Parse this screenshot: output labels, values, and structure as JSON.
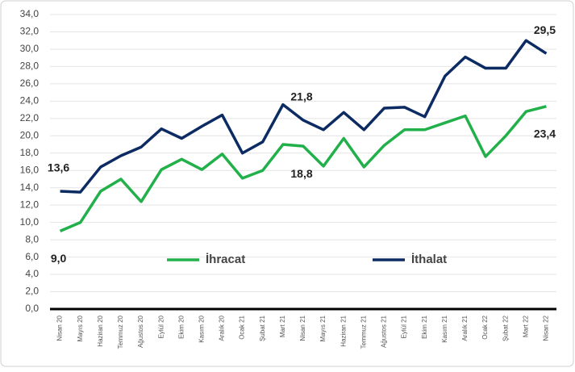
{
  "chart_data": {
    "type": "line",
    "categories": [
      "Nisan 20",
      "Mayıs 20",
      "Haziran 20",
      "Temmuz 20",
      "Ağustos 20",
      "Eylül 20",
      "Ekim 20",
      "Kasım 20",
      "Aralık 20",
      "Ocak 21",
      "Şubat 21",
      "Mart 21",
      "Nisan 21",
      "Mayıs 21",
      "Haziran 21",
      "Temmuz 21",
      "Ağustos 21",
      "Eylül 21",
      "Ekim 21",
      "Kasım 21",
      "Aralık 21",
      "Ocak 22",
      "Şubat 22",
      "Mart 22",
      "Nisan 22"
    ],
    "series": [
      {
        "name": "İhracat",
        "color": "#22b04b",
        "values": [
          9.0,
          10.0,
          13.6,
          15.0,
          12.4,
          16.1,
          17.3,
          16.1,
          17.9,
          15.1,
          16.0,
          19.0,
          18.8,
          16.5,
          19.7,
          16.4,
          18.9,
          20.7,
          20.7,
          21.5,
          22.3,
          17.6,
          20.0,
          22.8,
          23.4
        ],
        "value_labels": [
          "9,0",
          null,
          null,
          null,
          null,
          null,
          null,
          null,
          null,
          null,
          null,
          null,
          "18,8",
          null,
          null,
          null,
          null,
          null,
          null,
          null,
          null,
          null,
          null,
          null,
          "23,4"
        ]
      },
      {
        "name": "İthalat",
        "color": "#0d2b63",
        "values": [
          13.6,
          13.5,
          16.4,
          17.7,
          18.7,
          20.8,
          19.7,
          21.1,
          22.4,
          18.0,
          19.3,
          23.6,
          21.8,
          20.7,
          22.7,
          20.7,
          23.2,
          23.3,
          22.2,
          26.9,
          29.1,
          27.8,
          27.8,
          31.0,
          29.5
        ],
        "value_labels": [
          "13,6",
          null,
          null,
          null,
          null,
          null,
          null,
          null,
          null,
          null,
          null,
          null,
          "21,8",
          null,
          null,
          null,
          null,
          null,
          null,
          null,
          null,
          null,
          null,
          null,
          "29,5"
        ]
      }
    ],
    "ylim": [
      0,
      34
    ],
    "yticks": [
      {
        "value": 0,
        "label": "0,0"
      },
      {
        "value": 2,
        "label": "2,0"
      },
      {
        "value": 4,
        "label": "4,0"
      },
      {
        "value": 6,
        "label": "6,0"
      },
      {
        "value": 8,
        "label": "8,0"
      },
      {
        "value": 10,
        "label": "10,0"
      },
      {
        "value": 12,
        "label": "12,0"
      },
      {
        "value": 14,
        "label": "14,0"
      },
      {
        "value": 16,
        "label": "16,0"
      },
      {
        "value": 18,
        "label": "18,0"
      },
      {
        "value": 20,
        "label": "20,0"
      },
      {
        "value": 22,
        "label": "22,0"
      },
      {
        "value": 24,
        "label": "24,0"
      },
      {
        "value": 26,
        "label": "26,0"
      },
      {
        "value": 28,
        "label": "28,0"
      },
      {
        "value": 30,
        "label": "30,0"
      },
      {
        "value": 32,
        "label": "32,0"
      },
      {
        "value": 34,
        "label": "34,0"
      }
    ],
    "grid": true,
    "legend": "center"
  }
}
